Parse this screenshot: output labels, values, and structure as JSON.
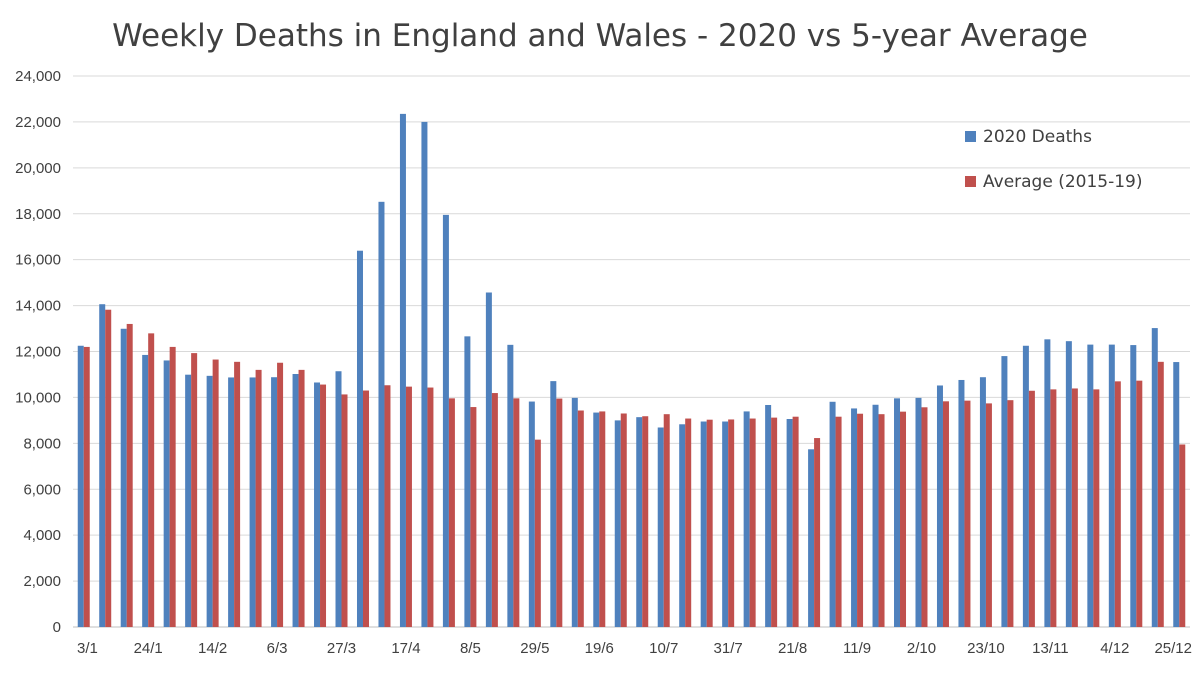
{
  "chart_data": {
    "type": "bar",
    "title": "Weekly Deaths in England and Wales - 2020 vs 5-year Average",
    "xlabel": "",
    "ylabel": "",
    "ylim": [
      0,
      24000
    ],
    "yticks": [
      0,
      2000,
      4000,
      6000,
      8000,
      10000,
      12000,
      14000,
      16000,
      18000,
      20000,
      22000,
      24000
    ],
    "ytick_labels": [
      "0",
      "2,000",
      "4,000",
      "6,000",
      "8,000",
      "10,000",
      "12,000",
      "14,000",
      "16,000",
      "18,000",
      "20,000",
      "22,000",
      "24,000"
    ],
    "categories": [
      "3/1",
      "10/1",
      "17/1",
      "24/1",
      "31/1",
      "7/2",
      "14/2",
      "21/2",
      "28/2",
      "6/3",
      "13/3",
      "20/3",
      "27/3",
      "3/4",
      "10/4",
      "17/4",
      "24/4",
      "1/5",
      "8/5",
      "15/5",
      "22/5",
      "29/5",
      "5/6",
      "12/6",
      "19/6",
      "26/6",
      "3/7",
      "10/7",
      "17/7",
      "24/7",
      "31/7",
      "7/8",
      "14/8",
      "21/8",
      "28/8",
      "4/9",
      "11/9",
      "18/9",
      "25/9",
      "2/10",
      "9/10",
      "16/10",
      "23/10",
      "30/10",
      "6/11",
      "13/11",
      "20/11",
      "27/11",
      "4/12",
      "11/12",
      "18/12",
      "25/12"
    ],
    "shown_labels": [
      "3/1",
      "24/1",
      "14/2",
      "6/3",
      "27/3",
      "17/4",
      "8/5",
      "29/5",
      "19/6",
      "10/7",
      "31/7",
      "21/8",
      "11/9",
      "2/10",
      "23/10",
      "13/11",
      "4/12",
      "25/12"
    ],
    "grid": true,
    "legend_position": "top-right",
    "series": [
      {
        "name": "2020 Deaths",
        "color": "#4f81bd",
        "values": [
          12250,
          14060,
          12990,
          11850,
          11610,
          10990,
          10940,
          10870,
          10870,
          10880,
          11020,
          10650,
          11140,
          16390,
          18520,
          22350,
          22000,
          17950,
          12660,
          14570,
          12290,
          9820,
          10710,
          9980,
          9340,
          9000,
          9140,
          8690,
          8830,
          8950,
          8950,
          9390,
          9670,
          9060,
          7740,
          9810,
          9520,
          9680,
          9960,
          9980,
          10520,
          10760,
          10880,
          11800,
          12250,
          12530,
          12450,
          12300,
          12300,
          12280,
          13020,
          11540
        ],
        "bar_color_hint": "blue"
      },
      {
        "name": "Average (2015-19)",
        "color": "#c0504d",
        "values": [
          12200,
          13820,
          13200,
          12790,
          12200,
          11930,
          11650,
          11550,
          11200,
          11510,
          11200,
          10560,
          10130,
          10300,
          10530,
          10470,
          10430,
          9960,
          9580,
          10190,
          9960,
          8160,
          9950,
          9430,
          9390,
          9300,
          9180,
          9270,
          9080,
          9030,
          9040,
          9080,
          9120,
          9160,
          8230,
          9160,
          9290,
          9270,
          9380,
          9570,
          9830,
          9860,
          9740,
          9880,
          10290,
          10350,
          10390,
          10350,
          10700,
          10730,
          11550,
          7950
        ]
      }
    ]
  }
}
